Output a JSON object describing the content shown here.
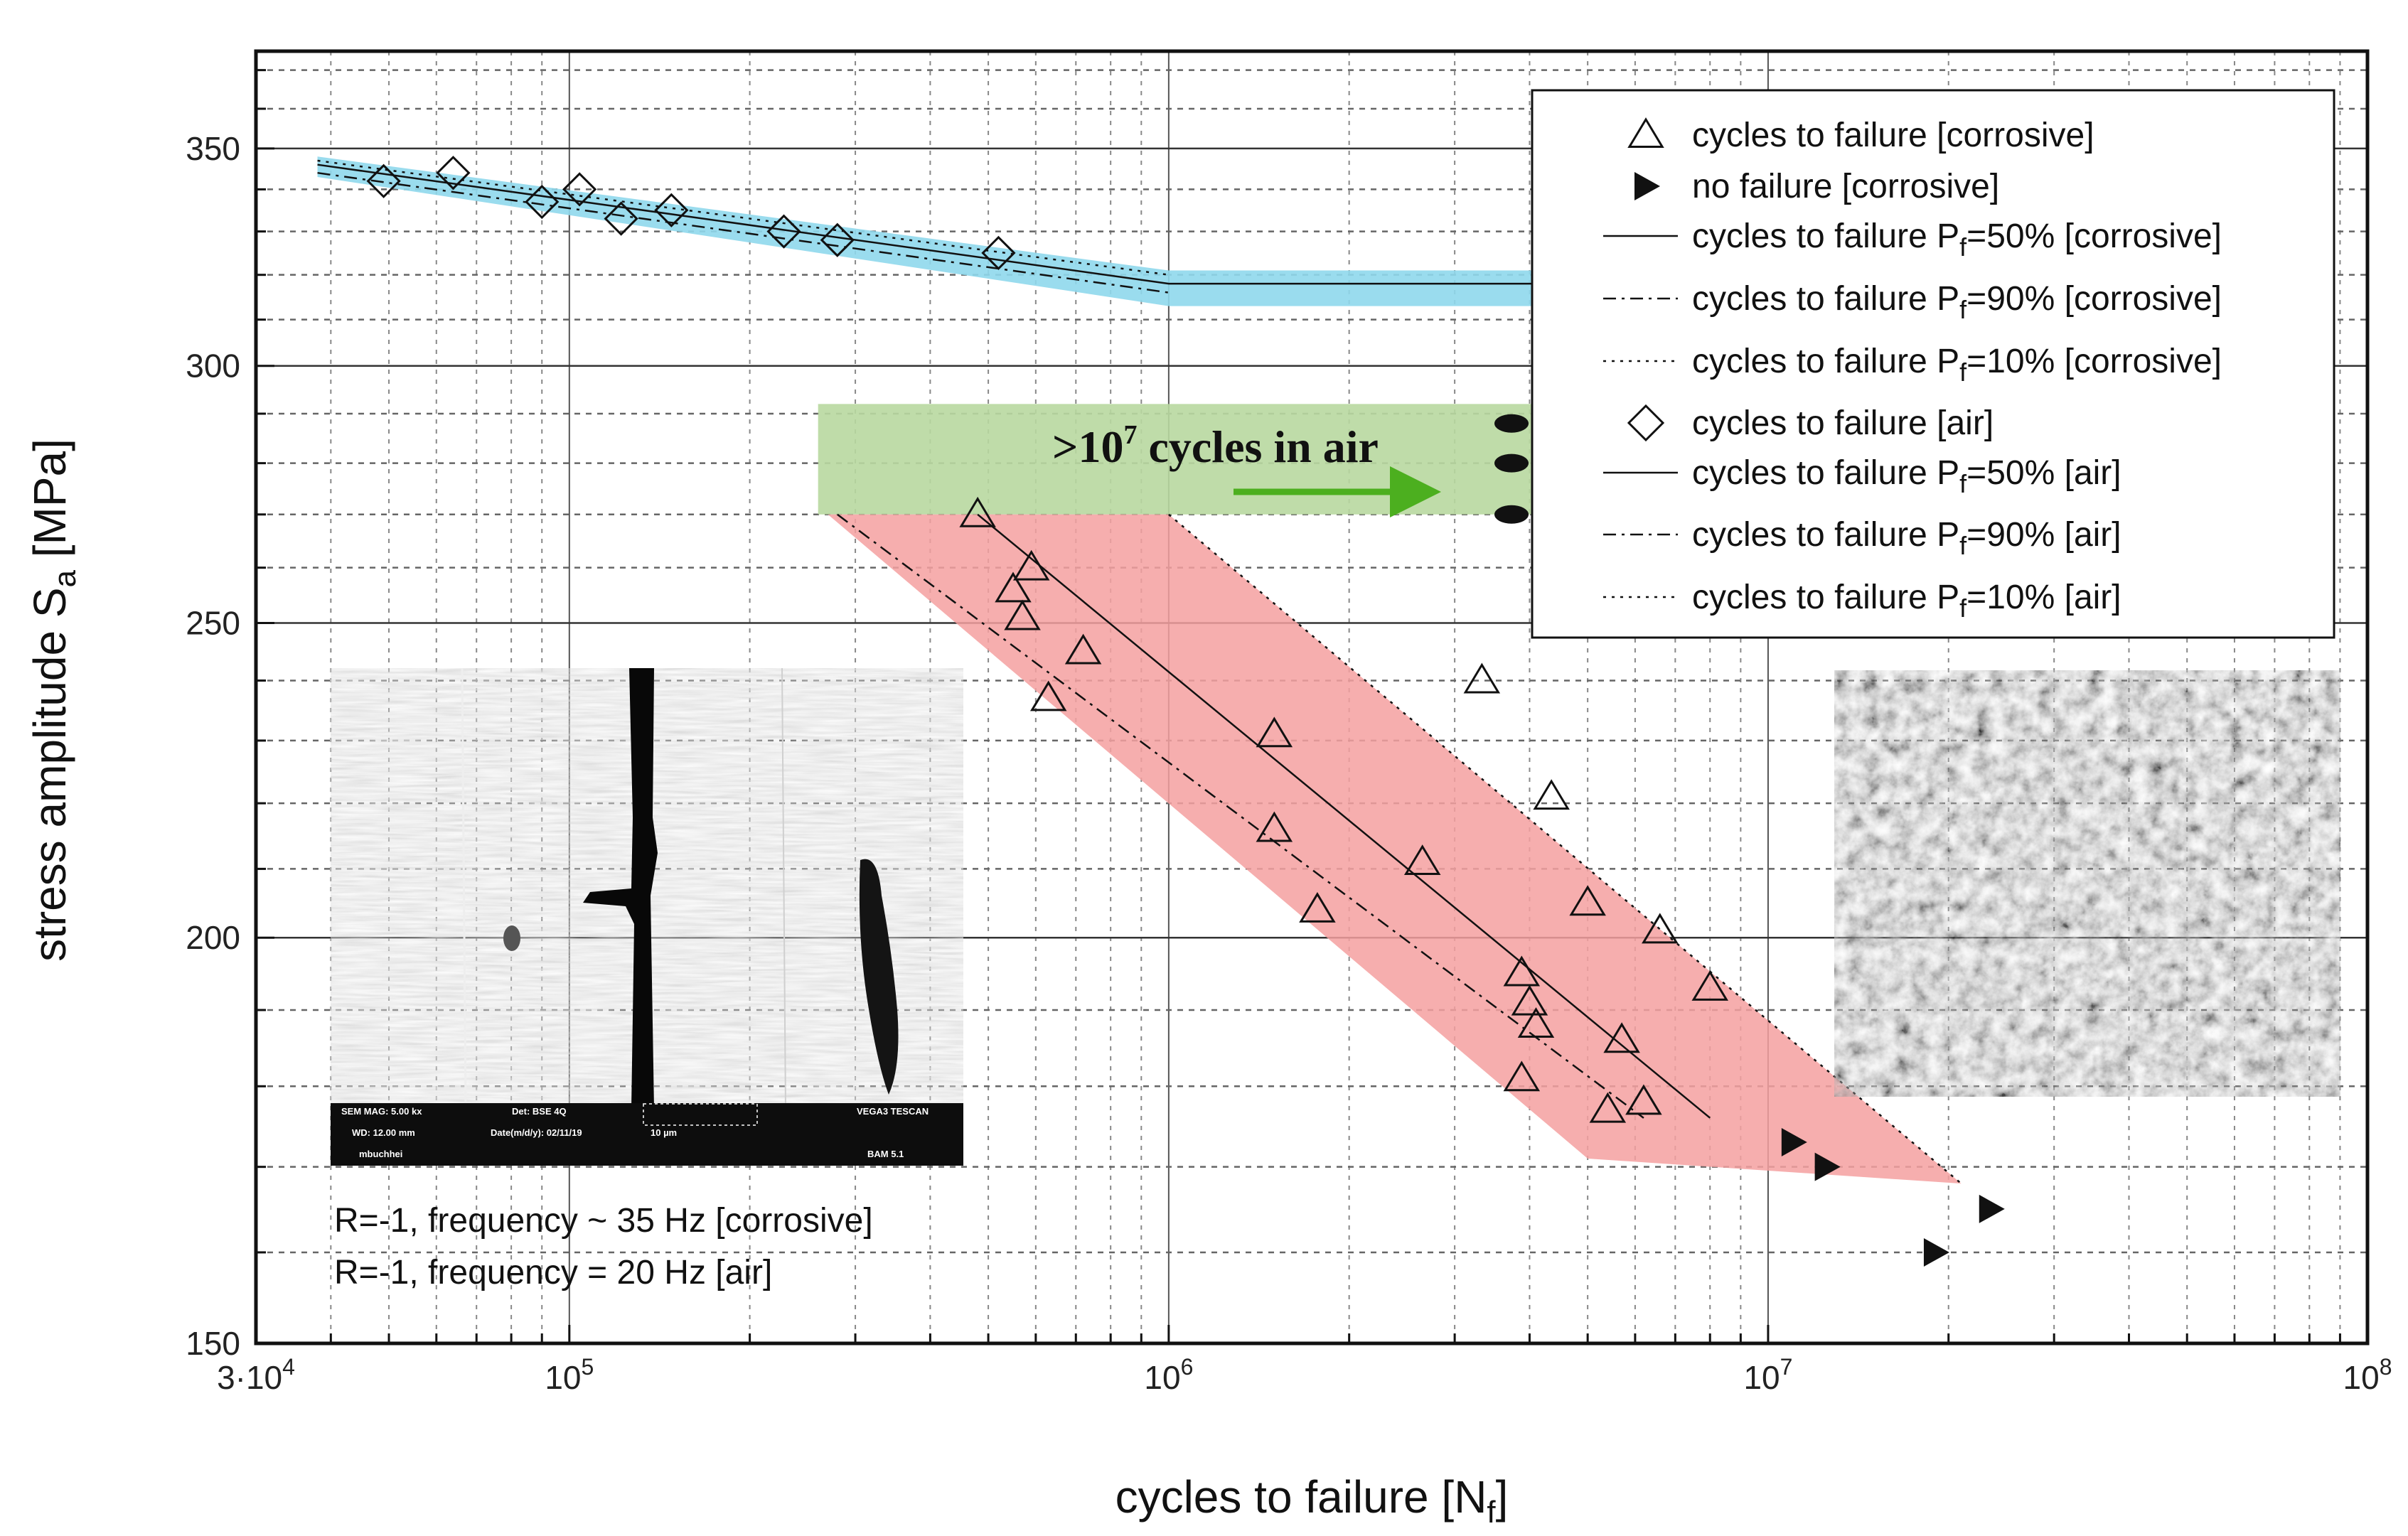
{
  "chart_data": {
    "type": "scatter",
    "xscale": "log",
    "yscale": "log",
    "xlim": [
      30000,
      100000000
    ],
    "ylim": [
      150,
      375
    ],
    "xlabel_main": "cycles to failure [N",
    "xlabel_sub": "f",
    "xlabel_end": "]",
    "ylabel_main": "stress amplitude S",
    "ylabel_sub": "a",
    "ylabel_end": " [MPa]",
    "x_ticks": [
      {
        "value": 30000,
        "label": "3·10",
        "exp": "4"
      },
      {
        "value": 100000,
        "label": "10",
        "exp": "5"
      },
      {
        "value": 1000000,
        "label": "10",
        "exp": "6"
      },
      {
        "value": 10000000,
        "label": "10",
        "exp": "7"
      },
      {
        "value": 100000000,
        "label": "10",
        "exp": "8"
      }
    ],
    "y_ticks": [
      {
        "value": 150,
        "label": "150"
      },
      {
        "value": 200,
        "label": "200"
      },
      {
        "value": 250,
        "label": "250"
      },
      {
        "value": 300,
        "label": "300"
      },
      {
        "value": 350,
        "label": "350"
      }
    ],
    "series": [
      {
        "name": "cycles to failure [corrosive]",
        "marker": "triangle",
        "points": [
          [
            480000,
            270
          ],
          [
            550000,
            256
          ],
          [
            590000,
            260
          ],
          [
            570000,
            251
          ],
          [
            720000,
            245
          ],
          [
            630000,
            237
          ],
          [
            1500000,
            231
          ],
          [
            1500000,
            216
          ],
          [
            1770000,
            204
          ],
          [
            2650000,
            211
          ],
          [
            3330000,
            240
          ],
          [
            4350000,
            221
          ],
          [
            3880000,
            195
          ],
          [
            4000000,
            191
          ],
          [
            4100000,
            188
          ],
          [
            3880000,
            181
          ],
          [
            5000000,
            205
          ],
          [
            6600000,
            201
          ],
          [
            8000000,
            193
          ],
          [
            5700000,
            186
          ],
          [
            5400000,
            177
          ],
          [
            6200000,
            178
          ]
        ]
      },
      {
        "name": "no failure [corrosive]",
        "marker": "triangle-right-filled",
        "points": [
          [
            11000000,
            173
          ],
          [
            12500000,
            170
          ],
          [
            23500000,
            165
          ],
          [
            19000000,
            160
          ]
        ]
      },
      {
        "name": "cycles to failure [air]",
        "marker": "diamond",
        "points": [
          [
            49000,
            342
          ],
          [
            64000,
            344
          ],
          [
            90000,
            337
          ],
          [
            104000,
            340
          ],
          [
            122000,
            333
          ],
          [
            148000,
            335
          ],
          [
            228000,
            330
          ],
          [
            280000,
            328
          ],
          [
            520000,
            325
          ]
        ]
      }
    ],
    "fit_lines": [
      {
        "name": "cycles to failure P",
        "sub": "f",
        "suffix": "=50% [corrosive]",
        "style": "solid",
        "points": [
          [
            480000,
            270
          ],
          [
            8000000,
            176
          ]
        ]
      },
      {
        "name": "cycles to failure P",
        "sub": "f",
        "suffix": "=90% [corrosive]",
        "style": "dashdot",
        "points": [
          [
            280000,
            270
          ],
          [
            6200000,
            176
          ]
        ]
      },
      {
        "name": "cycles to failure P",
        "sub": "f",
        "suffix": "=10% [corrosive]",
        "style": "dot",
        "points": [
          [
            1000000,
            270
          ],
          [
            21000000,
            168
          ]
        ]
      },
      {
        "name": "cycles to failure P",
        "sub": "f",
        "suffix": "=50% [air]",
        "style": "solid",
        "points": [
          [
            38000,
            346
          ],
          [
            1000000,
            318
          ],
          [
            4300000,
            318
          ]
        ]
      },
      {
        "name": "cycles to failure P",
        "sub": "f",
        "suffix": "=90% [air]",
        "style": "dashdot",
        "points": [
          [
            38000,
            344
          ],
          [
            1000000,
            316
          ]
        ]
      },
      {
        "name": "cycles to failure P",
        "sub": "f",
        "suffix": "=10% [air]",
        "style": "dot",
        "points": [
          [
            38000,
            347
          ],
          [
            1000000,
            320
          ]
        ]
      }
    ],
    "air_band": {
      "x_from": 38000,
      "x_to": 4300000,
      "upper": [
        [
          38000,
          348
        ],
        [
          1000000,
          321
        ],
        [
          4300000,
          321
        ]
      ],
      "lower": [
        [
          38000,
          343
        ],
        [
          1000000,
          313
        ],
        [
          4300000,
          313
        ]
      ],
      "color": "#8fd8ec"
    },
    "corrosive_band": {
      "polygon": [
        [
          270000,
          270
        ],
        [
          1000000,
          270
        ],
        [
          21000000,
          168
        ],
        [
          5000000,
          171
        ]
      ],
      "color": "#f4a0a0"
    },
    "air_runout_band": {
      "x_from": 260000,
      "x_to": 6000000,
      "y_from": 270,
      "y_to": 292,
      "color": "#b8d8a0"
    },
    "runout_air_markers": [
      [
        3300000,
        288
      ],
      [
        3300000,
        280
      ],
      [
        3300000,
        270
      ]
    ],
    "annotations": {
      "air_label_main": ">10",
      "air_label_exp": "7",
      "air_label_end": " cycles in air",
      "note_line1": "R=-1, frequency ~ 35 Hz [corrosive]",
      "note_line2": "R=-1, frequency = 20 Hz [air]"
    },
    "legend": {
      "position": "top-right"
    },
    "grid": true,
    "colors": {
      "air_band": "#8fd8ec",
      "corrosive_band": "#f4a0a0",
      "runout_band": "#b8d8a0",
      "arrow": "#4caf1f"
    }
  },
  "sem_image": {
    "row1": [
      "SEM MAG: 5.00 kx",
      "Det: BSE 4Q",
      "VEGA3 TESCAN"
    ],
    "row2": [
      "WD: 12.00 mm",
      "Date(m/d/y): 02/11/19",
      "10 µm"
    ],
    "row3": [
      "mbuchhei",
      "BAM 5.1"
    ]
  }
}
